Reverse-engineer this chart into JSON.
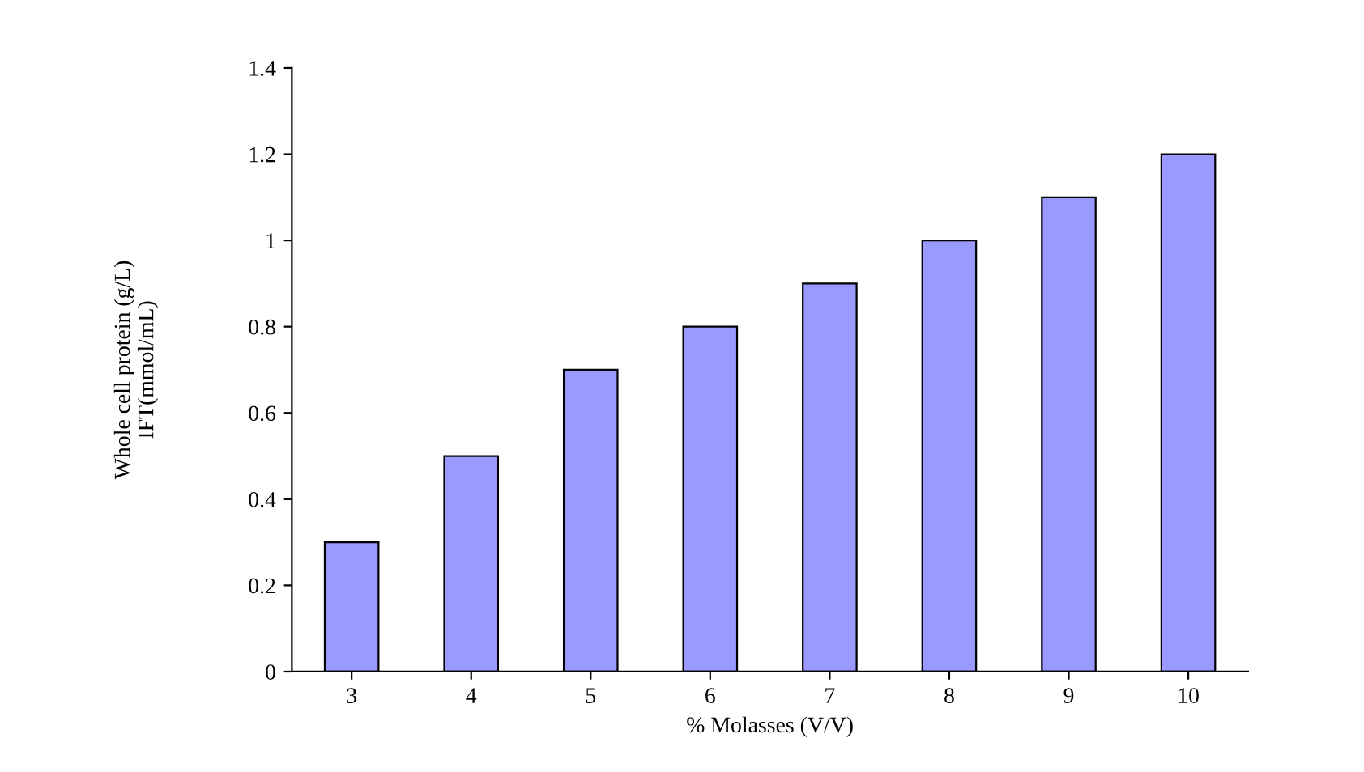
{
  "chart_data": {
    "type": "bar",
    "xlabel": "% Molasses (V/V)",
    "ylabel": "Whole cell protein (g/L)\nIFT(mmol/mL)",
    "categories": [
      "3",
      "4",
      "5",
      "6",
      "7",
      "8",
      "9",
      "10"
    ],
    "values": [
      0.3,
      0.5,
      0.7,
      0.8,
      0.9,
      1.0,
      1.1,
      1.2
    ],
    "color": "#9999ff",
    "ylim": [
      0,
      1.4
    ],
    "yticks": [
      0,
      0.2,
      0.4,
      0.6,
      0.8,
      1,
      1.2,
      1.4
    ],
    "grid": false
  }
}
